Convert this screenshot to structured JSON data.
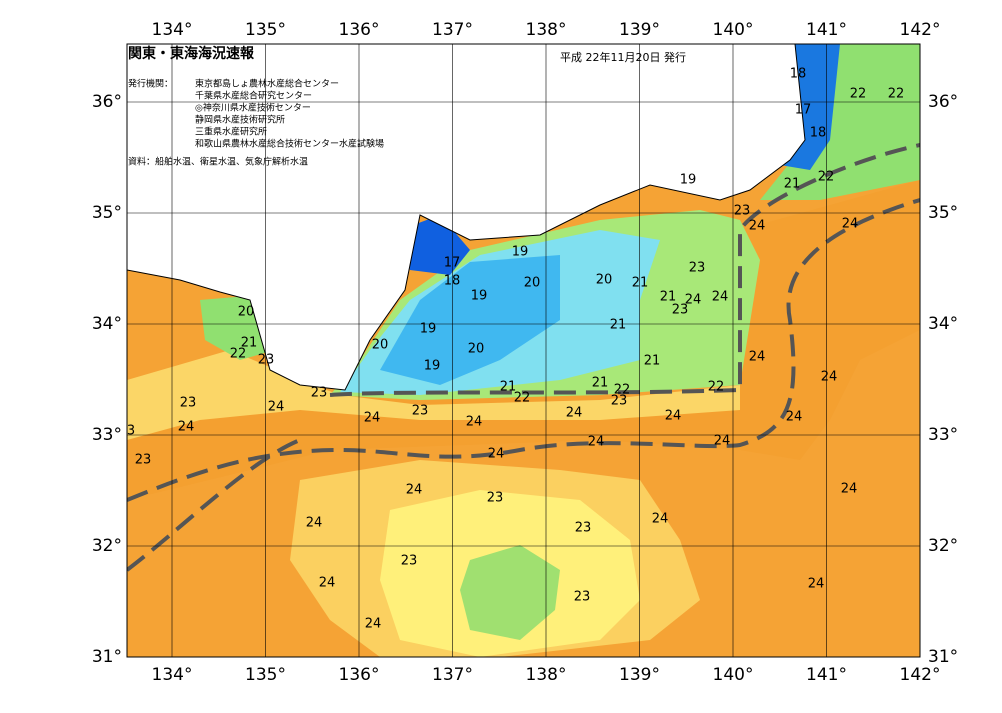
{
  "map": {
    "title": "関東・東海海況速報",
    "date": "平成 22年11月20日 発行",
    "publisher_heading": "発行機関：",
    "publishers": [
      "東京都島しょ農林水産総合センター",
      "千葉県水産総合研究センター",
      "◎神奈川県水産技術センター",
      "静岡県水産技術研究所",
      "三重県水産研究所",
      "和歌山県農林水産総合技術センター水産試験場"
    ],
    "source": "資料：船舶水温、衛星水温、気象庁解析水温",
    "lon_ticks": [
      {
        "value": 134,
        "label": "134°"
      },
      {
        "value": 135,
        "label": "135°"
      },
      {
        "value": 136,
        "label": "136°"
      },
      {
        "value": 137,
        "label": "137°"
      },
      {
        "value": 138,
        "label": "138°"
      },
      {
        "value": 139,
        "label": "139°"
      },
      {
        "value": 140,
        "label": "140°"
      },
      {
        "value": 141,
        "label": "141°"
      },
      {
        "value": 142,
        "label": "142°"
      }
    ],
    "lat_ticks": [
      {
        "value": 31,
        "label": "31°"
      },
      {
        "value": 32,
        "label": "32°"
      },
      {
        "value": 33,
        "label": "33°"
      },
      {
        "value": 34,
        "label": "34°"
      },
      {
        "value": 35,
        "label": "35°"
      },
      {
        "value": 36,
        "label": "36°"
      }
    ],
    "contour_labels": [
      18,
      22,
      22,
      17,
      18,
      19,
      21,
      22,
      23,
      24,
      24,
      19,
      17,
      18,
      19,
      20,
      20,
      21,
      23,
      21,
      23,
      24,
      24,
      20,
      19,
      21,
      21,
      22,
      23,
      20,
      20,
      21,
      24,
      19,
      24,
      23,
      21,
      21,
      22,
      22,
      22,
      23,
      24,
      23,
      24,
      23,
      24,
      24,
      24,
      24,
      24,
      3,
      24,
      24,
      23,
      24,
      24,
      24,
      23,
      24,
      24,
      23,
      23,
      24,
      24,
      23,
      24
    ]
  }
}
